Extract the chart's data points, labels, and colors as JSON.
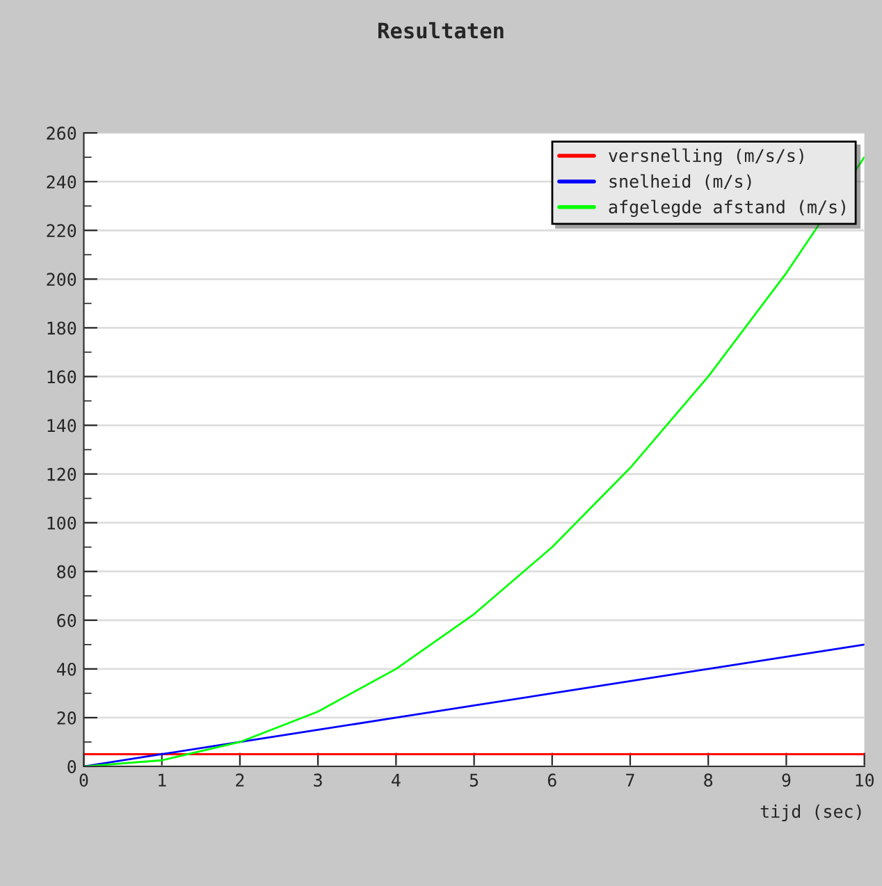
{
  "chart_data": {
    "type": "line",
    "title": "Resultaten",
    "xlabel": "tijd (sec)",
    "x": [
      0,
      1,
      2,
      3,
      4,
      5,
      6,
      7,
      8,
      9,
      10
    ],
    "series": [
      {
        "name": "versnelling (m/s/s)",
        "color": "#ff0000",
        "values": [
          5,
          5,
          5,
          5,
          5,
          5,
          5,
          5,
          5,
          5,
          5
        ]
      },
      {
        "name": "snelheid (m/s)",
        "color": "#0000ff",
        "values": [
          0,
          5,
          10,
          15,
          20,
          25,
          30,
          35,
          40,
          45,
          50
        ]
      },
      {
        "name": "afgelegde afstand (m/s)",
        "color": "#00ff00",
        "values": [
          0,
          2.5,
          10,
          22.5,
          40,
          62.5,
          90,
          122.5,
          160,
          202.5,
          250
        ]
      }
    ],
    "xlim": [
      0,
      10
    ],
    "xticks": [
      0,
      1,
      2,
      3,
      4,
      5,
      6,
      7,
      8,
      9,
      10
    ],
    "ylim": [
      0,
      260
    ],
    "yticks": [
      0,
      20,
      40,
      60,
      80,
      100,
      120,
      140,
      160,
      180,
      200,
      220,
      240,
      260
    ],
    "grid": "y",
    "legend": "top right",
    "marker": "none",
    "line_style": "solid"
  }
}
